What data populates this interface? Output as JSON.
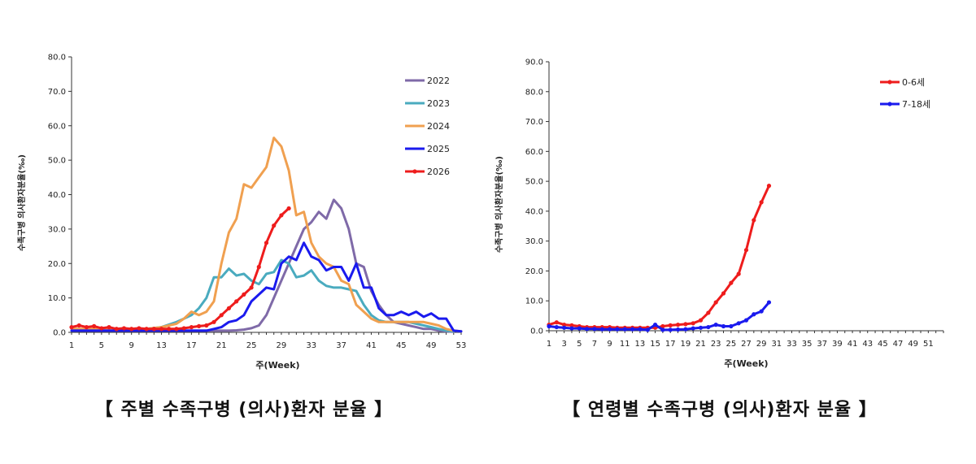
{
  "chart_data": [
    {
      "type": "line",
      "title": "【 주별 수족구병 (의사)환자 분율 】",
      "xlabel": "주(Week)",
      "ylabel": "수족구병 의사환자분율(‰)",
      "xlim": [
        1,
        53
      ],
      "ylim": [
        0,
        80
      ],
      "x_ticks": [
        "1",
        "5",
        "9",
        "13",
        "17",
        "21",
        "25",
        "29",
        "33",
        "37",
        "41",
        "45",
        "49",
        "53"
      ],
      "y_ticks": [
        "0.0",
        "10.0",
        "20.0",
        "30.0",
        "40.0",
        "50.0",
        "60.0",
        "70.0",
        "80.0"
      ],
      "legend_position": "top-right",
      "grid": false,
      "series": [
        {
          "name": "2022",
          "color": "#7f6aa8",
          "x": [
            1,
            3,
            5,
            7,
            9,
            11,
            13,
            15,
            17,
            19,
            20,
            21,
            22,
            23,
            24,
            25,
            26,
            27,
            28,
            29,
            30,
            31,
            32,
            33,
            34,
            35,
            36,
            37,
            38,
            39,
            40,
            41,
            42,
            43,
            44,
            45,
            46,
            47,
            48,
            49,
            50,
            51,
            52
          ],
          "y": [
            0.5,
            0.5,
            0.5,
            0.5,
            0.5,
            0.5,
            0.5,
            0.5,
            0.5,
            0.5,
            0.5,
            0.5,
            0.5,
            0.6,
            0.8,
            1.2,
            2.0,
            5.0,
            10.0,
            15.0,
            20.0,
            25.0,
            30.0,
            32.0,
            35.0,
            33.0,
            38.5,
            36.0,
            30.0,
            20.0,
            19.0,
            12.0,
            8.0,
            5.0,
            3.0,
            2.5,
            2.0,
            1.5,
            1.0,
            1.0,
            0.5,
            0.3,
            0.2
          ]
        },
        {
          "name": "2023",
          "color": "#4aabbf",
          "x": [
            1,
            3,
            5,
            7,
            9,
            11,
            13,
            15,
            16,
            17,
            18,
            19,
            20,
            21,
            22,
            23,
            24,
            25,
            26,
            27,
            28,
            29,
            30,
            31,
            32,
            33,
            34,
            35,
            36,
            37,
            38,
            39,
            40,
            41,
            42,
            43,
            44,
            45,
            46,
            47,
            48,
            49,
            50,
            51,
            52
          ],
          "y": [
            0.5,
            0.6,
            0.8,
            1.0,
            1.0,
            1.0,
            1.5,
            3.0,
            4.0,
            5.0,
            7.0,
            10.0,
            16.0,
            16.0,
            18.5,
            16.5,
            17.0,
            15.0,
            14.0,
            17.0,
            17.5,
            21.0,
            20.0,
            16.0,
            16.5,
            18.0,
            15.0,
            13.5,
            13.0,
            13.0,
            12.5,
            12.0,
            8.0,
            5.0,
            3.5,
            3.0,
            3.0,
            3.0,
            3.0,
            2.5,
            2.0,
            1.5,
            1.0,
            0.5,
            0.3
          ]
        },
        {
          "name": "2024",
          "color": "#f0a050",
          "x": [
            1,
            3,
            5,
            7,
            9,
            11,
            13,
            14,
            15,
            16,
            17,
            18,
            19,
            20,
            21,
            22,
            23,
            24,
            25,
            26,
            27,
            28,
            29,
            30,
            31,
            32,
            33,
            34,
            35,
            36,
            37,
            38,
            39,
            40,
            41,
            42,
            43,
            44,
            45,
            46,
            47,
            48,
            49,
            50,
            51,
            52,
            53
          ],
          "y": [
            1.0,
            1.0,
            1.0,
            1.0,
            1.0,
            1.0,
            1.5,
            2.0,
            2.5,
            4.0,
            6.0,
            5.0,
            6.0,
            9.0,
            20.0,
            29.0,
            33.0,
            43.0,
            42.0,
            45.0,
            48.0,
            56.5,
            54.0,
            47.0,
            34.0,
            35.0,
            26.0,
            22.0,
            20.0,
            19.0,
            15.0,
            14.0,
            8.0,
            6.0,
            4.0,
            3.0,
            3.0,
            3.0,
            3.0,
            3.0,
            3.0,
            3.0,
            2.5,
            2.0,
            1.0,
            0.5,
            0.3
          ]
        },
        {
          "name": "2025",
          "color": "#1a1aee",
          "x": [
            1,
            3,
            5,
            7,
            9,
            11,
            13,
            15,
            17,
            19,
            20,
            21,
            22,
            23,
            24,
            25,
            26,
            27,
            28,
            29,
            30,
            31,
            32,
            33,
            34,
            35,
            36,
            37,
            38,
            39,
            40,
            41,
            42,
            43,
            44,
            45,
            46,
            47,
            48,
            49,
            50,
            51,
            52,
            53
          ],
          "y": [
            0.5,
            0.5,
            0.5,
            0.5,
            0.5,
            0.5,
            0.5,
            0.5,
            0.5,
            0.5,
            1.0,
            1.5,
            3.0,
            3.5,
            5.0,
            9.0,
            11.0,
            13.0,
            12.5,
            20.0,
            22.0,
            21.0,
            26.0,
            22.0,
            21.0,
            18.0,
            19.0,
            19.0,
            15.0,
            20.0,
            13.0,
            13.0,
            7.0,
            5.0,
            5.0,
            6.0,
            5.0,
            6.0,
            4.5,
            5.5,
            4.0,
            4.0,
            0.5,
            0.3
          ]
        },
        {
          "name": "2026",
          "color": "#ee1c1c",
          "x": [
            1,
            2,
            3,
            4,
            5,
            6,
            7,
            8,
            9,
            10,
            11,
            12,
            13,
            14,
            15,
            16,
            17,
            18,
            19,
            20,
            21,
            22,
            23,
            24,
            25,
            26,
            27,
            28,
            29,
            30
          ],
          "y": [
            1.5,
            2.0,
            1.5,
            1.8,
            1.2,
            1.5,
            1.0,
            1.2,
            1.0,
            1.2,
            1.0,
            1.0,
            1.0,
            1.0,
            1.0,
            1.2,
            1.5,
            1.8,
            2.0,
            3.0,
            5.0,
            7.0,
            9.0,
            11.0,
            13.0,
            19.0,
            26.0,
            31.0,
            34.0,
            36.0
          ]
        }
      ]
    },
    {
      "type": "line",
      "title": "【 연령별 수족구병 (의사)환자 분율 】",
      "xlabel": "주(Week)",
      "ylabel": "수족구병 의사환자분율(‰)",
      "xlim": [
        1,
        53
      ],
      "ylim": [
        0,
        90
      ],
      "x_ticks": [
        "1",
        "3",
        "5",
        "7",
        "9",
        "11",
        "13",
        "15",
        "17",
        "19",
        "21",
        "23",
        "25",
        "27",
        "29",
        "31",
        "33",
        "35",
        "37",
        "39",
        "41",
        "43",
        "45",
        "47",
        "49",
        "51"
      ],
      "y_ticks": [
        "0.0",
        "10.0",
        "20.0",
        "30.0",
        "40.0",
        "50.0",
        "60.0",
        "70.0",
        "80.0",
        "90.0"
      ],
      "legend_position": "top-right",
      "grid": false,
      "series": [
        {
          "name": "0-6세",
          "color": "#ee1c1c",
          "x": [
            1,
            2,
            3,
            4,
            5,
            6,
            7,
            8,
            9,
            10,
            11,
            12,
            13,
            14,
            15,
            16,
            17,
            18,
            19,
            20,
            21,
            22,
            23,
            24,
            25,
            26,
            27,
            28,
            29,
            30
          ],
          "y": [
            2.0,
            2.8,
            2.0,
            1.8,
            1.5,
            1.2,
            1.2,
            1.2,
            1.2,
            1.0,
            1.0,
            1.0,
            1.0,
            1.0,
            1.0,
            1.5,
            1.8,
            2.0,
            2.2,
            2.5,
            3.5,
            6.0,
            9.5,
            12.5,
            16.0,
            19.0,
            27.0,
            37.0,
            43.0,
            48.5
          ]
        },
        {
          "name": "7-18세",
          "color": "#1a1aee",
          "x": [
            1,
            2,
            3,
            4,
            5,
            6,
            7,
            8,
            9,
            10,
            11,
            12,
            13,
            14,
            15,
            16,
            17,
            18,
            19,
            20,
            21,
            22,
            23,
            24,
            25,
            26,
            27,
            28,
            29,
            30
          ],
          "y": [
            1.5,
            1.2,
            1.0,
            0.8,
            0.8,
            0.6,
            0.6,
            0.5,
            0.5,
            0.5,
            0.5,
            0.5,
            0.5,
            0.3,
            2.0,
            0.3,
            0.3,
            0.4,
            0.5,
            0.8,
            1.0,
            1.2,
            2.0,
            1.5,
            1.5,
            2.5,
            3.5,
            5.5,
            6.5,
            9.5
          ]
        }
      ]
    }
  ]
}
